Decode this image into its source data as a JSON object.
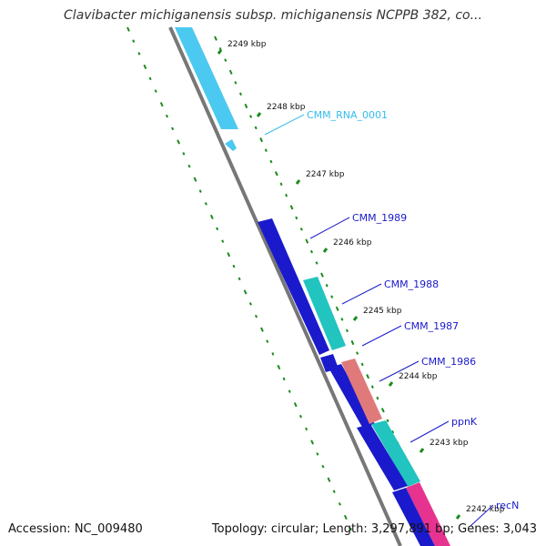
{
  "title": "Clavibacter michiganensis subsp. michiganensis NCPPB 382, co...",
  "footer": {
    "accession": "Accession: NC_009480",
    "summary": "Topology: circular; Length: 3,297,891 bp; Genes: 3,043"
  },
  "colors": {
    "backbone": "#777777",
    "ticks": "#1a8a1a",
    "rna": "#4cc9f0",
    "cds_blue": "#1a1acc",
    "cds_teal": "#22c4c0",
    "cds_salmon": "#e07a7a",
    "cds_pink": "#e6338f",
    "label_blue": "#1a1acc",
    "label_cyan": "#33bbee"
  },
  "ticks": [
    {
      "label": "2249 kbp"
    },
    {
      "label": "2248 kbp"
    },
    {
      "label": "2247 kbp"
    },
    {
      "label": "2246 kbp"
    },
    {
      "label": "2245 kbp"
    },
    {
      "label": "2244 kbp"
    },
    {
      "label": "2243 kbp"
    },
    {
      "label": "2242 kbp"
    }
  ],
  "genes": [
    {
      "name": "CMM_RNA_0001"
    },
    {
      "name": "CMM_1989"
    },
    {
      "name": "CMM_1988"
    },
    {
      "name": "CMM_1987"
    },
    {
      "name": "CMM_1986"
    },
    {
      "name": "ppnK"
    },
    {
      "name": "recN"
    }
  ]
}
